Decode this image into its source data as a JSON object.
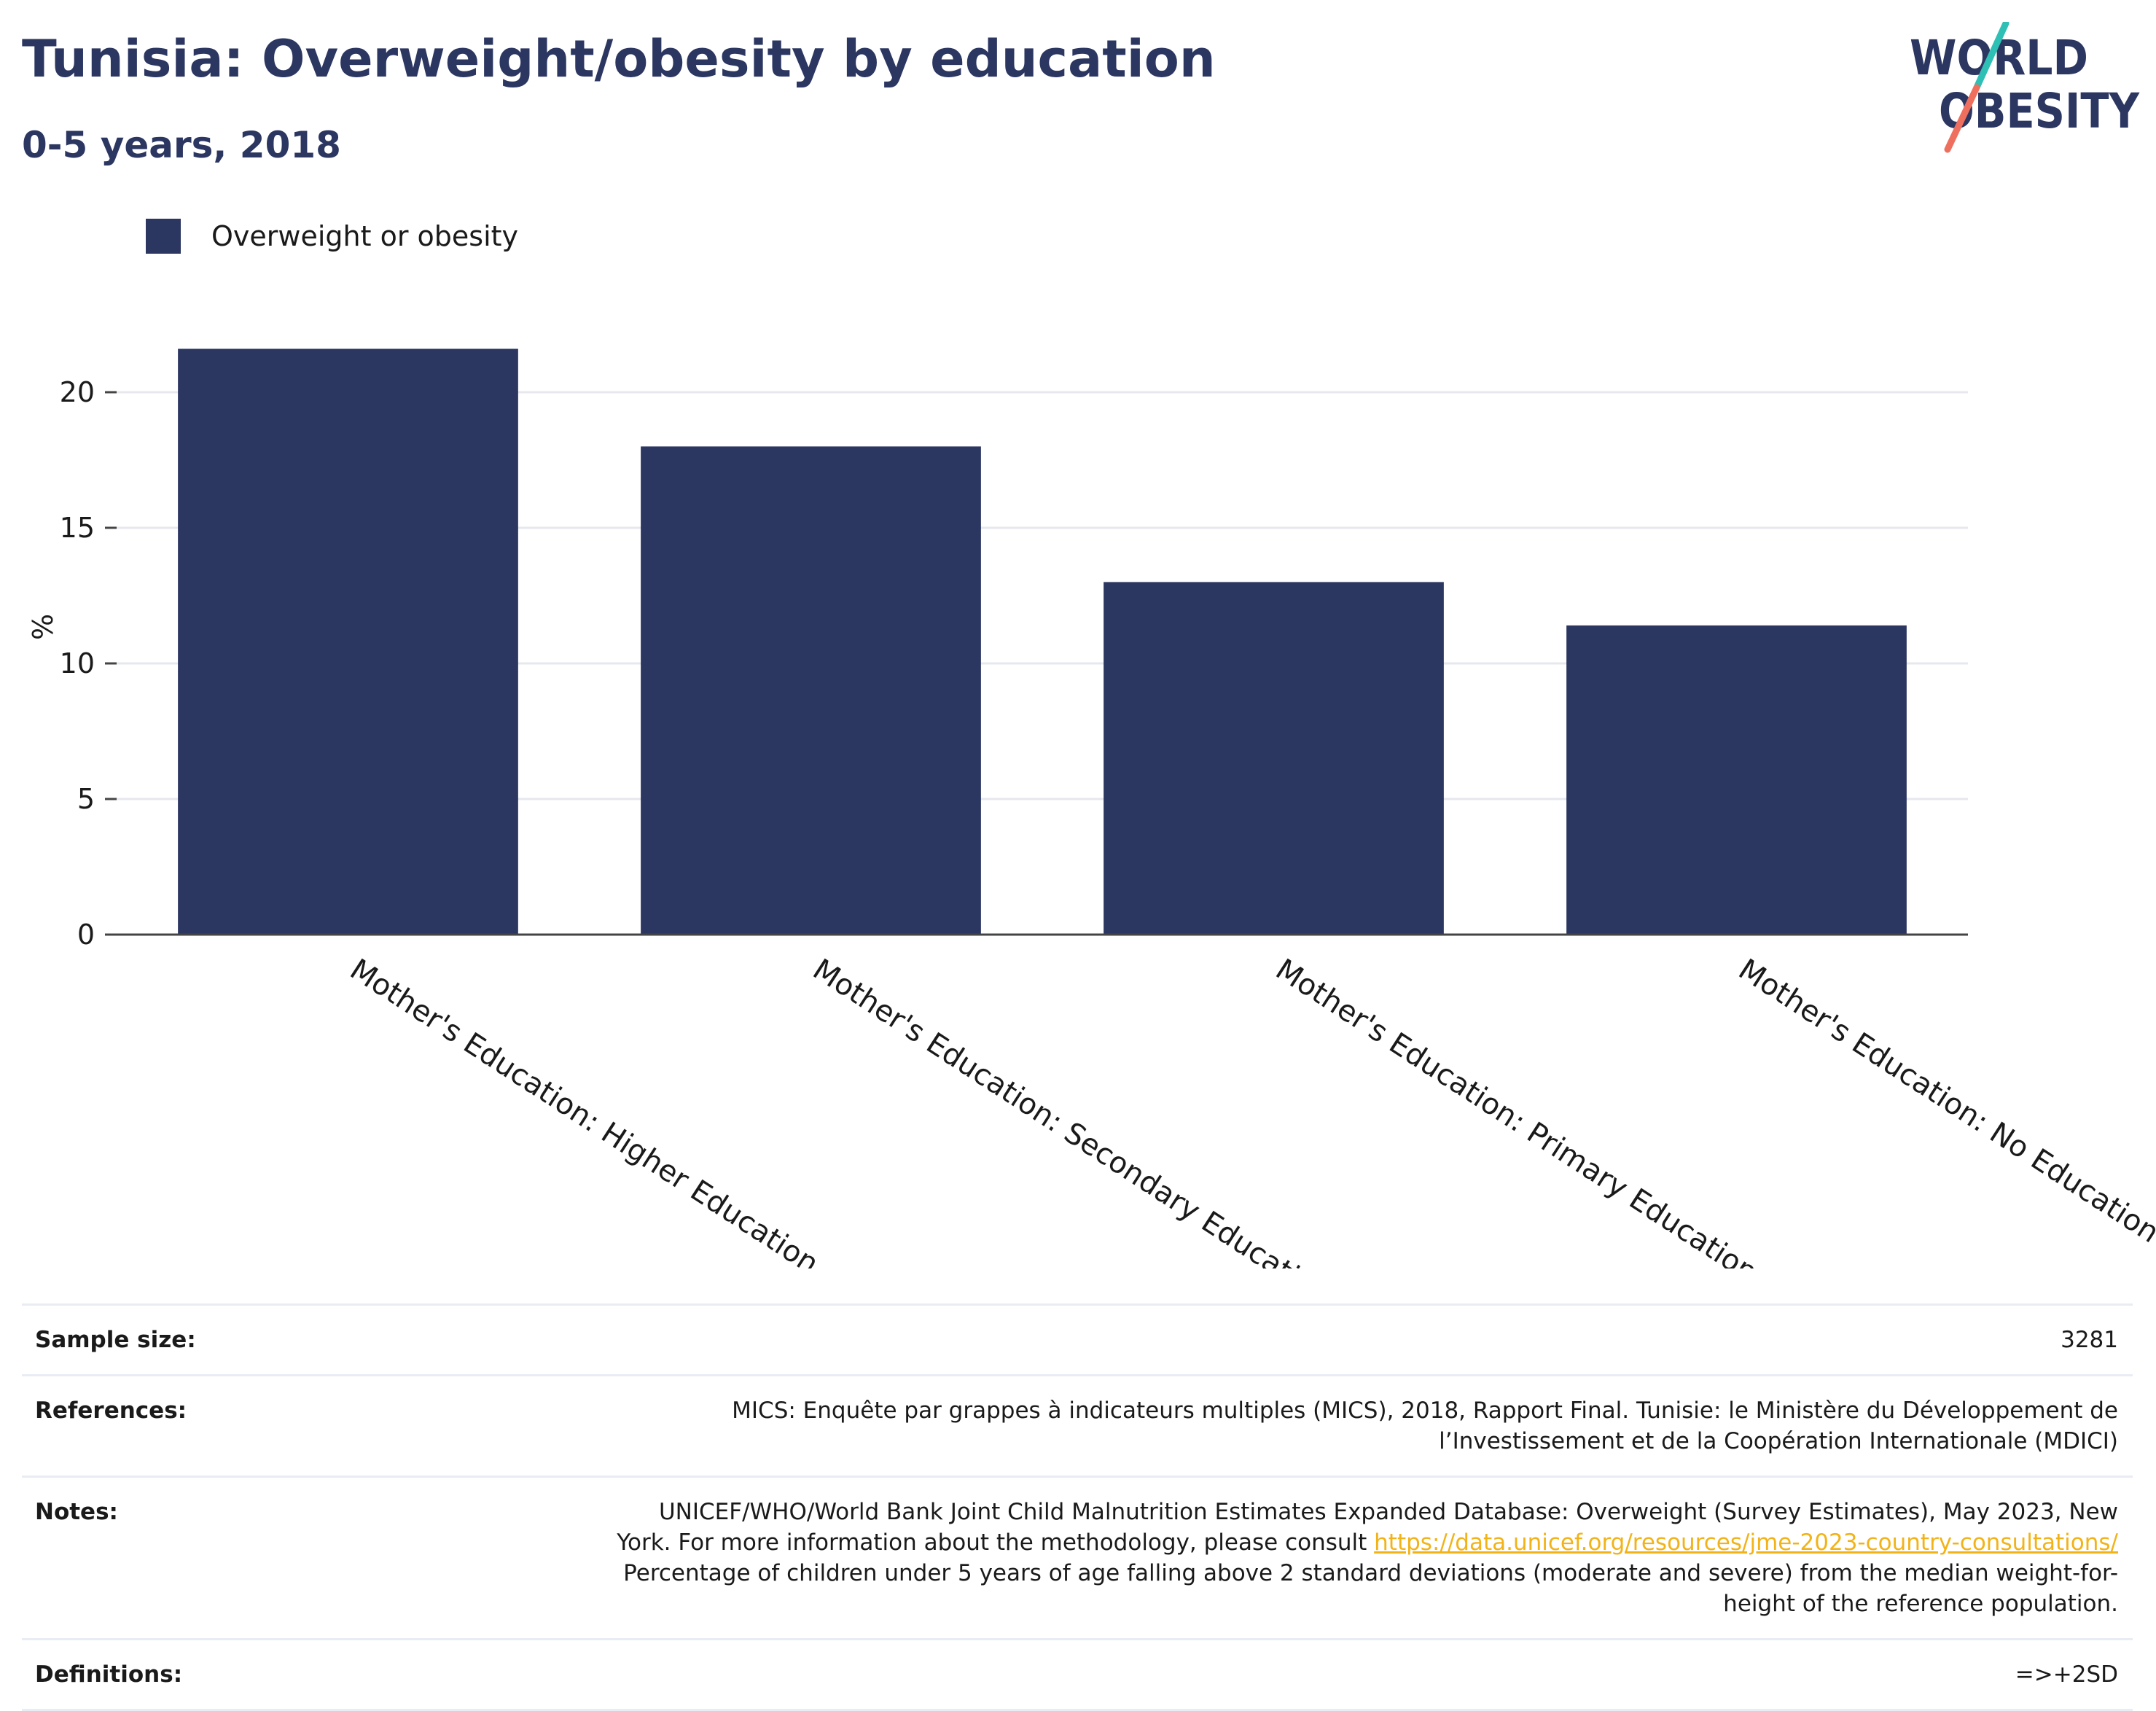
{
  "header": {
    "title": "Tunisia: Overweight/obesity by education",
    "subtitle": "0-5 years, 2018"
  },
  "logo": {
    "line1": "WORLD",
    "line2": "OBESITY"
  },
  "chart_data": {
    "type": "bar",
    "title": "Tunisia: Overweight/obesity by education",
    "subtitle": "0-5 years, 2018",
    "categories": [
      "Mother's Education: Higher Education",
      "Mother's Education: Secondary Education",
      "Mother's Education: Primary Education",
      "Mother's Education: No Education"
    ],
    "series": [
      {
        "name": "Overweight or obesity",
        "color": "#2b3661",
        "values": [
          21.6,
          18.0,
          13.0,
          11.4
        ]
      }
    ],
    "xlabel": "",
    "ylabel": "%",
    "ylim": [
      0,
      22
    ],
    "yticks": [
      0,
      5,
      10,
      15,
      20
    ],
    "grid": true,
    "legend": "top-left"
  },
  "info": {
    "sample_size": {
      "label": "Sample size:",
      "value": "3281"
    },
    "references": {
      "label": "References:",
      "value": "MICS: Enquête par grappes à indicateurs multiples (MICS), 2018, Rapport Final. Tunisie: le Ministère du Développement de l’Investissement et de la Coopération Internationale (MDICI)"
    },
    "notes": {
      "label": "Notes:",
      "text_before": "UNICEF/WHO/World Bank Joint Child Malnutrition Estimates Expanded Database: Overweight (Survey Estimates), May 2023, New York. For more information about the methodology, please consult ",
      "link": "https://data.unicef.org/resources/jme-2023-country-consultations/",
      "text_after": " Percentage of children under 5 years of age falling above 2 standard deviations (moderate and severe) from the median weight-for-height of the reference population."
    },
    "definitions": {
      "label": "Definitions:",
      "value": "=>+2SD"
    }
  },
  "colors": {
    "brand_navy": "#2b3661",
    "logo_teal": "#2ebfb5",
    "logo_coral": "#ef6f5e",
    "link": "#f2b318",
    "grid": "#e6e8ee"
  }
}
